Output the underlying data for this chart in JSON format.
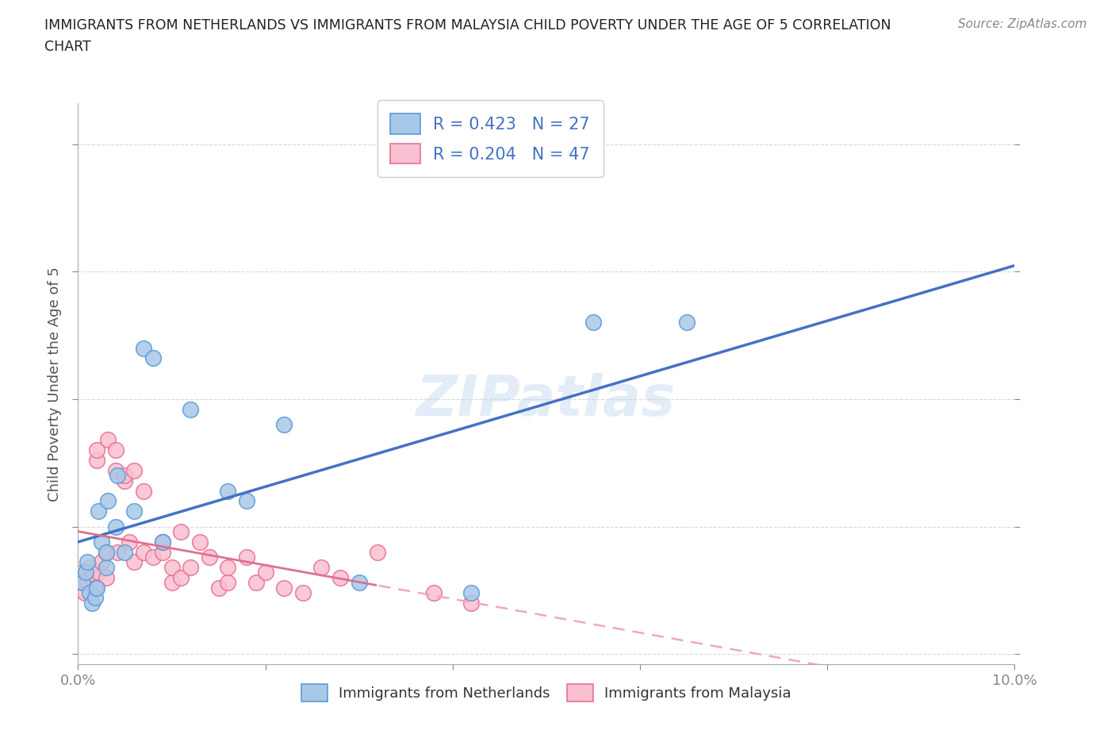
{
  "title": "IMMIGRANTS FROM NETHERLANDS VS IMMIGRANTS FROM MALAYSIA CHILD POVERTY UNDER THE AGE OF 5 CORRELATION\nCHART",
  "source": "Source: ZipAtlas.com",
  "xlim": [
    0.0,
    0.1
  ],
  "ylim": [
    -0.02,
    1.08
  ],
  "ylabel": "Child Poverty Under the Age of 5",
  "netherlands_color": "#a8c8e8",
  "netherlands_edge": "#5b9bd5",
  "malaysia_color": "#f8c0d0",
  "malaysia_edge": "#e87090",
  "netherlands_line_color": "#4472c4",
  "malaysia_line_color": "#e07090",
  "malaysia_dash_color": "#f0a8b8",
  "netherlands_R": 0.423,
  "netherlands_N": 27,
  "malaysia_R": 0.204,
  "malaysia_N": 47,
  "nl_x": [
    0.0005,
    0.0008,
    0.001,
    0.0012,
    0.0015,
    0.0018,
    0.002,
    0.0022,
    0.0025,
    0.003,
    0.003,
    0.0032,
    0.004,
    0.0042,
    0.005,
    0.006,
    0.007,
    0.008,
    0.009,
    0.012,
    0.016,
    0.018,
    0.022,
    0.03,
    0.042,
    0.055,
    0.065
  ],
  "nl_y": [
    0.14,
    0.16,
    0.18,
    0.12,
    0.1,
    0.11,
    0.13,
    0.28,
    0.22,
    0.17,
    0.2,
    0.3,
    0.25,
    0.35,
    0.2,
    0.28,
    0.6,
    0.58,
    0.22,
    0.48,
    0.32,
    0.3,
    0.45,
    0.14,
    0.12,
    0.65,
    0.65
  ],
  "ml_x": [
    0.0003,
    0.0005,
    0.0007,
    0.001,
    0.0012,
    0.0015,
    0.0018,
    0.002,
    0.002,
    0.0022,
    0.0025,
    0.003,
    0.003,
    0.0032,
    0.004,
    0.004,
    0.0042,
    0.005,
    0.005,
    0.0055,
    0.006,
    0.006,
    0.007,
    0.007,
    0.008,
    0.009,
    0.009,
    0.01,
    0.01,
    0.011,
    0.011,
    0.012,
    0.013,
    0.014,
    0.015,
    0.016,
    0.016,
    0.018,
    0.019,
    0.02,
    0.022,
    0.024,
    0.026,
    0.028,
    0.032,
    0.038,
    0.042
  ],
  "ml_y": [
    0.14,
    0.16,
    0.12,
    0.14,
    0.17,
    0.15,
    0.13,
    0.38,
    0.4,
    0.16,
    0.18,
    0.2,
    0.15,
    0.42,
    0.36,
    0.4,
    0.2,
    0.34,
    0.35,
    0.22,
    0.36,
    0.18,
    0.32,
    0.2,
    0.19,
    0.2,
    0.22,
    0.14,
    0.17,
    0.24,
    0.15,
    0.17,
    0.22,
    0.19,
    0.13,
    0.14,
    0.17,
    0.19,
    0.14,
    0.16,
    0.13,
    0.12,
    0.17,
    0.15,
    0.2,
    0.12,
    0.1
  ],
  "watermark": "ZIPatlas",
  "background_color": "#ffffff",
  "grid_color": "#d0d0d0",
  "ytick_color": "#4472c4"
}
